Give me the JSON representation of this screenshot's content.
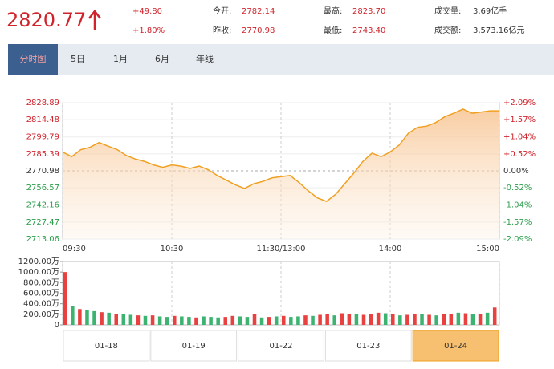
{
  "header": {
    "price": "2820.77",
    "change": "+49.80",
    "change_pct": "+1.80%",
    "stats": [
      {
        "label": "今开:",
        "value": "2782.14"
      },
      {
        "label": "昨收:",
        "value": "2770.98"
      },
      {
        "label": "最高:",
        "value": "2823.70"
      },
      {
        "label": "最低:",
        "value": "2743.40"
      },
      {
        "label": "成交量:",
        "value": "3.69亿手"
      },
      {
        "label": "成交额:",
        "value": "3,573.16亿元"
      }
    ]
  },
  "tabs": [
    "分时图",
    "5日",
    "1月",
    "6月",
    "年线"
  ],
  "date_tabs": [
    "01-18",
    "01-19",
    "01-22",
    "01-23",
    "01-24"
  ],
  "chart_data": [
    {
      "type": "line",
      "color": "#f0a020",
      "x": [
        0,
        5,
        10,
        15,
        20,
        25,
        30,
        35,
        40,
        45,
        50,
        55,
        60,
        65,
        70,
        75,
        80,
        85,
        90,
        95,
        100,
        105,
        110,
        115,
        120,
        125,
        130,
        135,
        140,
        145,
        150,
        155,
        160,
        165,
        170,
        175,
        180,
        185,
        190,
        195,
        200,
        205,
        210,
        215,
        220,
        225,
        230,
        235,
        240
      ],
      "xticks": [
        {
          "value": 0,
          "label": "09:30"
        },
        {
          "value": 60,
          "label": "10:30"
        },
        {
          "value": 120,
          "label": "11:30/13:00"
        },
        {
          "value": 180,
          "label": "14:00"
        },
        {
          "value": 240,
          "label": "15:00"
        }
      ],
      "xlim": [
        0,
        240
      ],
      "series": [
        {
          "values": [
            2787,
            2783,
            2789,
            2791,
            2795,
            2792,
            2789,
            2784,
            2781,
            2779,
            2776,
            2774,
            2776,
            2775,
            2773,
            2775,
            2772,
            2767,
            2763,
            2759,
            2756,
            2760,
            2762,
            2765,
            2766,
            2767,
            2761,
            2754,
            2748,
            2745,
            2751,
            2760,
            2769,
            2779,
            2786,
            2783,
            2787,
            2793,
            2803,
            2808,
            2809,
            2812,
            2817,
            2820,
            2823.5,
            2820,
            2821,
            2822,
            2822
          ]
        }
      ],
      "ylim": [
        2713.06,
        2828.89
      ],
      "yticks": [
        2713.06,
        2727.47,
        2742.16,
        2756.57,
        2770.98,
        2785.39,
        2799.79,
        2814.48,
        2828.89
      ],
      "y2lim": [
        -2.09,
        2.09
      ],
      "y2ticks": [
        {
          "value": -2.09,
          "label": "-2.09%"
        },
        {
          "value": -1.57,
          "label": "-1.57%"
        },
        {
          "value": -1.04,
          "label": "-1.04%"
        },
        {
          "value": -0.52,
          "label": "-0.52%"
        },
        {
          "value": 0,
          "label": "0.00%"
        },
        {
          "value": 0.52,
          "label": "+0.52%"
        },
        {
          "value": 1.04,
          "label": "+1.04%"
        },
        {
          "value": 1.57,
          "label": "+1.57%"
        },
        {
          "value": 2.09,
          "label": "+2.09%"
        }
      ],
      "grid": true
    },
    {
      "type": "bar",
      "xlim": [
        0,
        240
      ],
      "x": [
        0,
        4,
        8,
        12,
        16,
        20,
        24,
        28,
        32,
        36,
        40,
        44,
        48,
        52,
        56,
        60,
        64,
        68,
        72,
        76,
        80,
        84,
        88,
        92,
        96,
        100,
        104,
        108,
        112,
        116,
        120,
        124,
        128,
        132,
        136,
        140,
        144,
        148,
        152,
        156,
        160,
        164,
        168,
        172,
        176,
        180,
        184,
        188,
        192,
        196,
        200,
        204,
        208,
        212,
        216,
        220,
        224,
        228,
        232,
        236
      ],
      "values": [
        1000,
        350,
        300,
        280,
        260,
        240,
        230,
        210,
        200,
        190,
        180,
        170,
        180,
        160,
        150,
        170,
        160,
        150,
        140,
        160,
        150,
        140,
        150,
        170,
        160,
        150,
        200,
        140,
        150,
        160,
        170,
        150,
        160,
        180,
        170,
        190,
        200,
        180,
        220,
        210,
        200,
        190,
        210,
        230,
        220,
        200,
        180,
        190,
        210,
        200,
        190,
        180,
        200,
        210,
        230,
        220,
        210,
        200,
        230,
        330
      ],
      "colors": [
        "#e8413f",
        "#3cb371",
        "#e8413f",
        "#3cb371",
        "#3cb371",
        "#e8413f",
        "#3cb371",
        "#e8413f",
        "#3cb371",
        "#3cb371",
        "#e8413f",
        "#3cb371",
        "#e8413f",
        "#3cb371",
        "#3cb371",
        "#e8413f",
        "#3cb371",
        "#3cb371",
        "#e8413f",
        "#3cb371",
        "#3cb371",
        "#3cb371",
        "#e8413f",
        "#e8413f",
        "#3cb371",
        "#3cb371",
        "#e8413f",
        "#3cb371",
        "#e8413f",
        "#3cb371",
        "#e8413f",
        "#3cb371",
        "#3cb371",
        "#e8413f",
        "#3cb371",
        "#e8413f",
        "#e8413f",
        "#3cb371",
        "#e8413f",
        "#e8413f",
        "#3cb371",
        "#e8413f",
        "#e8413f",
        "#e8413f",
        "#3cb371",
        "#e8413f",
        "#3cb371",
        "#e8413f",
        "#e8413f",
        "#3cb371",
        "#e8413f",
        "#3cb371",
        "#e8413f",
        "#e8413f",
        "#3cb371",
        "#e8413f",
        "#3cb371",
        "#e8413f",
        "#3cb371",
        "#e8413f"
      ],
      "ylim": [
        0,
        1200
      ],
      "yticks": [
        0,
        {
          "value": 200,
          "label": "200.00万"
        },
        {
          "value": 400,
          "label": "400.00万"
        },
        {
          "value": 600,
          "label": "600.00万"
        },
        {
          "value": 800,
          "label": "800.00万"
        },
        {
          "value": 1000,
          "label": "1000.00万"
        },
        {
          "value": 1200,
          "label": "1200.00万"
        }
      ]
    }
  ]
}
